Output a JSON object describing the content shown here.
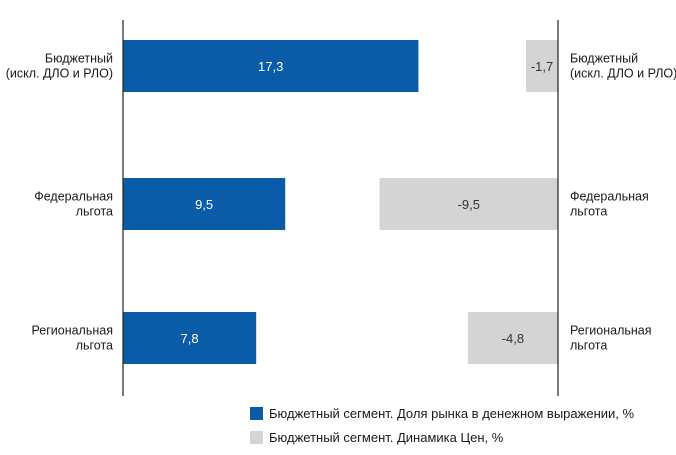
{
  "colors": {
    "market_share": "#0a5ba8",
    "price_dynamics": "#d4d4d4",
    "axis": "#222222"
  },
  "legend": {
    "market_share": "Бюджетный сегмент. Доля рынка в денежном выражении, %",
    "price_dynamics": "Бюджетный сегмент. Динамика Цен, %"
  },
  "chart_data": [
    {
      "type": "bar",
      "orientation": "horizontal",
      "categories": [
        [
          "Бюджетный",
          "(искл. ДЛО и РЛО)"
        ],
        [
          "Федеральная",
          "льгота"
        ],
        [
          "Региональная",
          "льгота"
        ]
      ],
      "series": [
        {
          "name": "Бюджетный сегмент. Доля рынка в денежном выражении, %",
          "values": [
            17.3,
            9.5,
            7.8
          ],
          "labels": [
            "17,3",
            "9,5",
            "7,8"
          ]
        }
      ],
      "xlim": [
        0,
        19.5
      ],
      "grid": false,
      "legend_position": "bottom"
    },
    {
      "type": "bar",
      "orientation": "horizontal",
      "categories": [
        [
          "Бюджетный",
          "(искл. ДЛО и РЛО)"
        ],
        [
          "Федеральная",
          "льгота"
        ],
        [
          "Региональная",
          "льгота"
        ]
      ],
      "series": [
        {
          "name": "Бюджетный сегмент. Динамика Цен, %",
          "values": [
            -1.7,
            -9.5,
            -4.8
          ],
          "labels": [
            "-1,7",
            "-9,5",
            "-4,8"
          ]
        }
      ],
      "xlim": [
        -11.5,
        0
      ],
      "grid": false,
      "legend_position": "bottom"
    }
  ]
}
